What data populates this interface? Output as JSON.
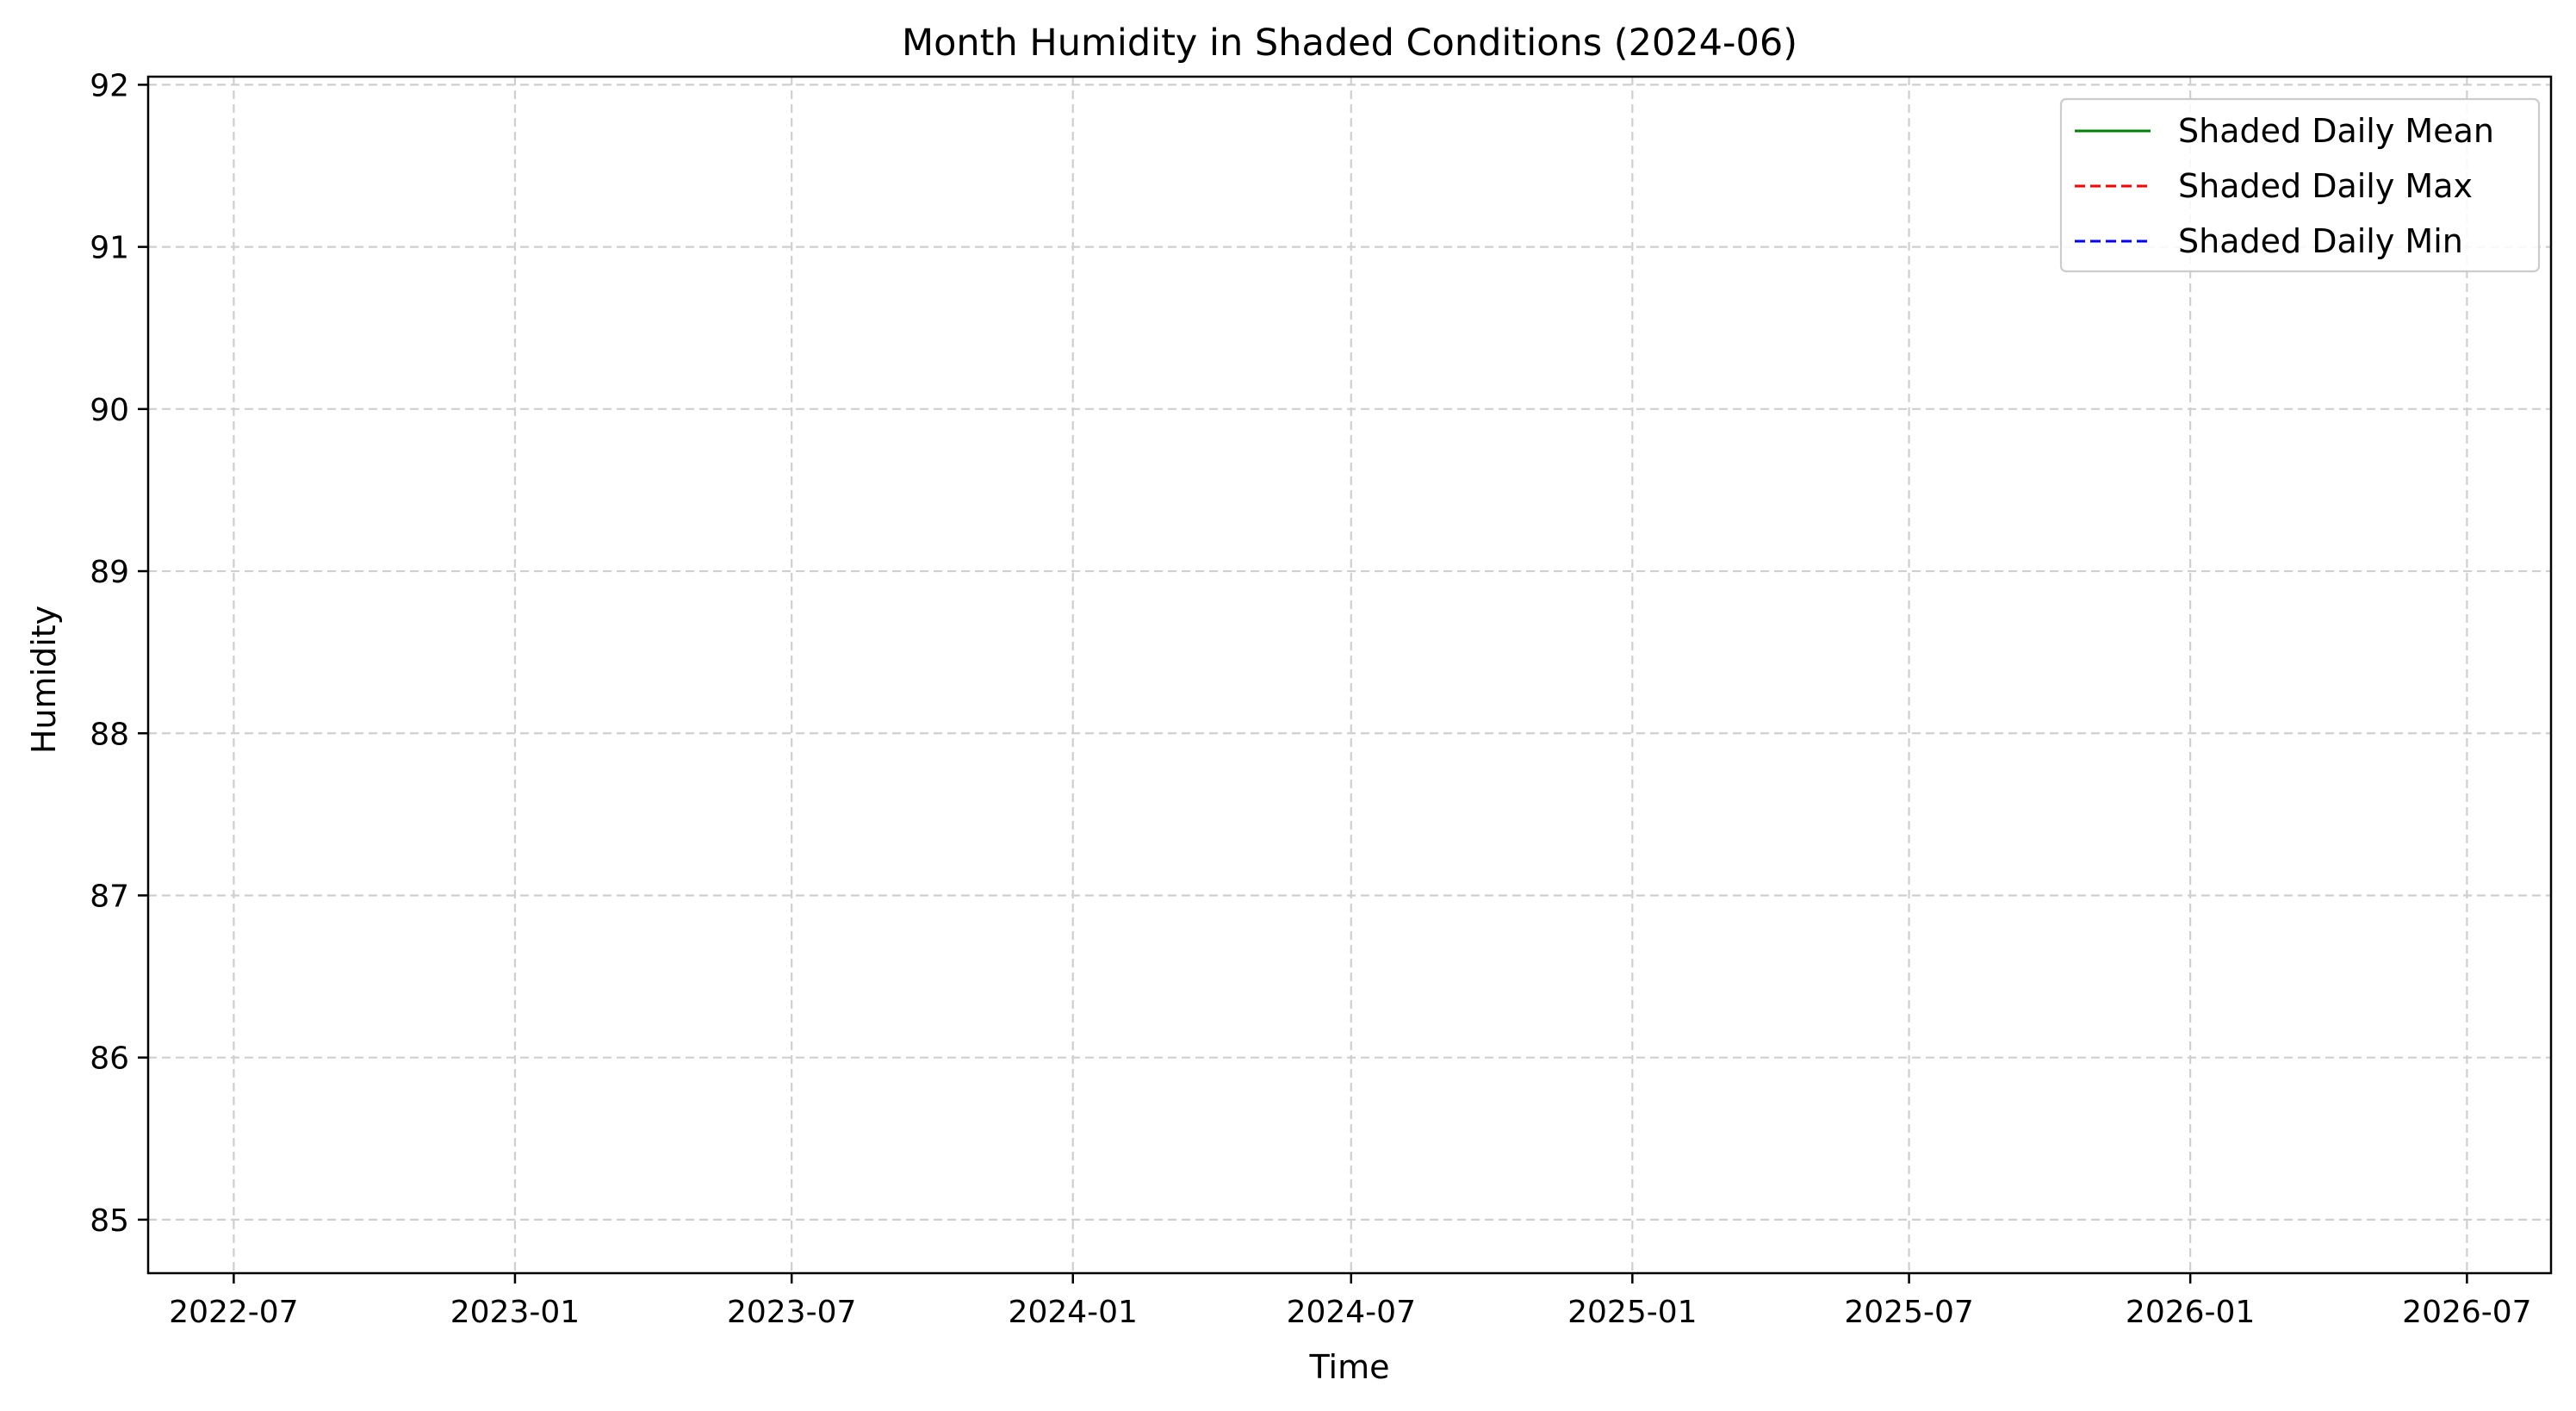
{
  "chart_data": {
    "type": "line",
    "title": "Month Humidity in Shaded Conditions (2024-06)",
    "xlabel": "Time",
    "ylabel": "Humidity",
    "x_type": "date",
    "xlim": [
      "2022-05-06",
      "2026-08-25"
    ],
    "ylim": [
      84.67,
      92.05
    ],
    "x_ticks": [
      "2022-07",
      "2023-01",
      "2023-07",
      "2024-01",
      "2024-07",
      "2025-01",
      "2025-07",
      "2026-01",
      "2026-07"
    ],
    "y_ticks": [
      85,
      86,
      87,
      88,
      89,
      90,
      91,
      92
    ],
    "grid": true,
    "legend_position": "top-right",
    "series": [
      {
        "name": "Shaded Daily Mean",
        "color": "#008000",
        "line_style": "solid",
        "x": [],
        "y": []
      },
      {
        "name": "Shaded Daily Max",
        "color": "#ff0000",
        "line_style": "dashed",
        "x": [],
        "y": []
      },
      {
        "name": "Shaded Daily Min",
        "color": "#0000ff",
        "line_style": "dashed",
        "x": [],
        "y": []
      }
    ]
  }
}
